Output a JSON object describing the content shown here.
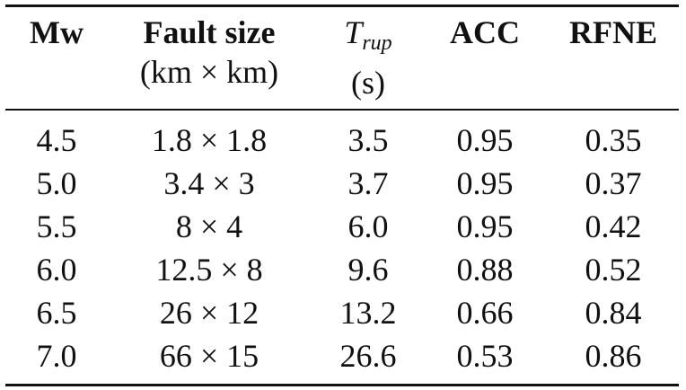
{
  "table": {
    "headers": {
      "mw": "Mw",
      "fault_size": "Fault size",
      "fault_size_unit": "(km × km)",
      "trup_symbol": "T",
      "trup_subscript": "rup",
      "trup_unit": "(s)",
      "acc": "ACC",
      "rfne": "RFNE"
    },
    "rows": [
      {
        "mw": "4.5",
        "fault_size": "1.8 × 1.8",
        "trup": "3.5",
        "acc": "0.95",
        "rfne": "0.35"
      },
      {
        "mw": "5.0",
        "fault_size": "3.4 × 3",
        "trup": "3.7",
        "acc": "0.95",
        "rfne": "0.37"
      },
      {
        "mw": "5.5",
        "fault_size": "8 × 4",
        "trup": "6.0",
        "acc": "0.95",
        "rfne": "0.42"
      },
      {
        "mw": "6.0",
        "fault_size": "12.5 × 8",
        "trup": "9.6",
        "acc": "0.88",
        "rfne": "0.52"
      },
      {
        "mw": "6.5",
        "fault_size": "26 × 12",
        "trup": "13.2",
        "acc": "0.66",
        "rfne": "0.84"
      },
      {
        "mw": "7.0",
        "fault_size": "66 × 15",
        "trup": "26.6",
        "acc": "0.53",
        "rfne": "0.86"
      }
    ]
  }
}
